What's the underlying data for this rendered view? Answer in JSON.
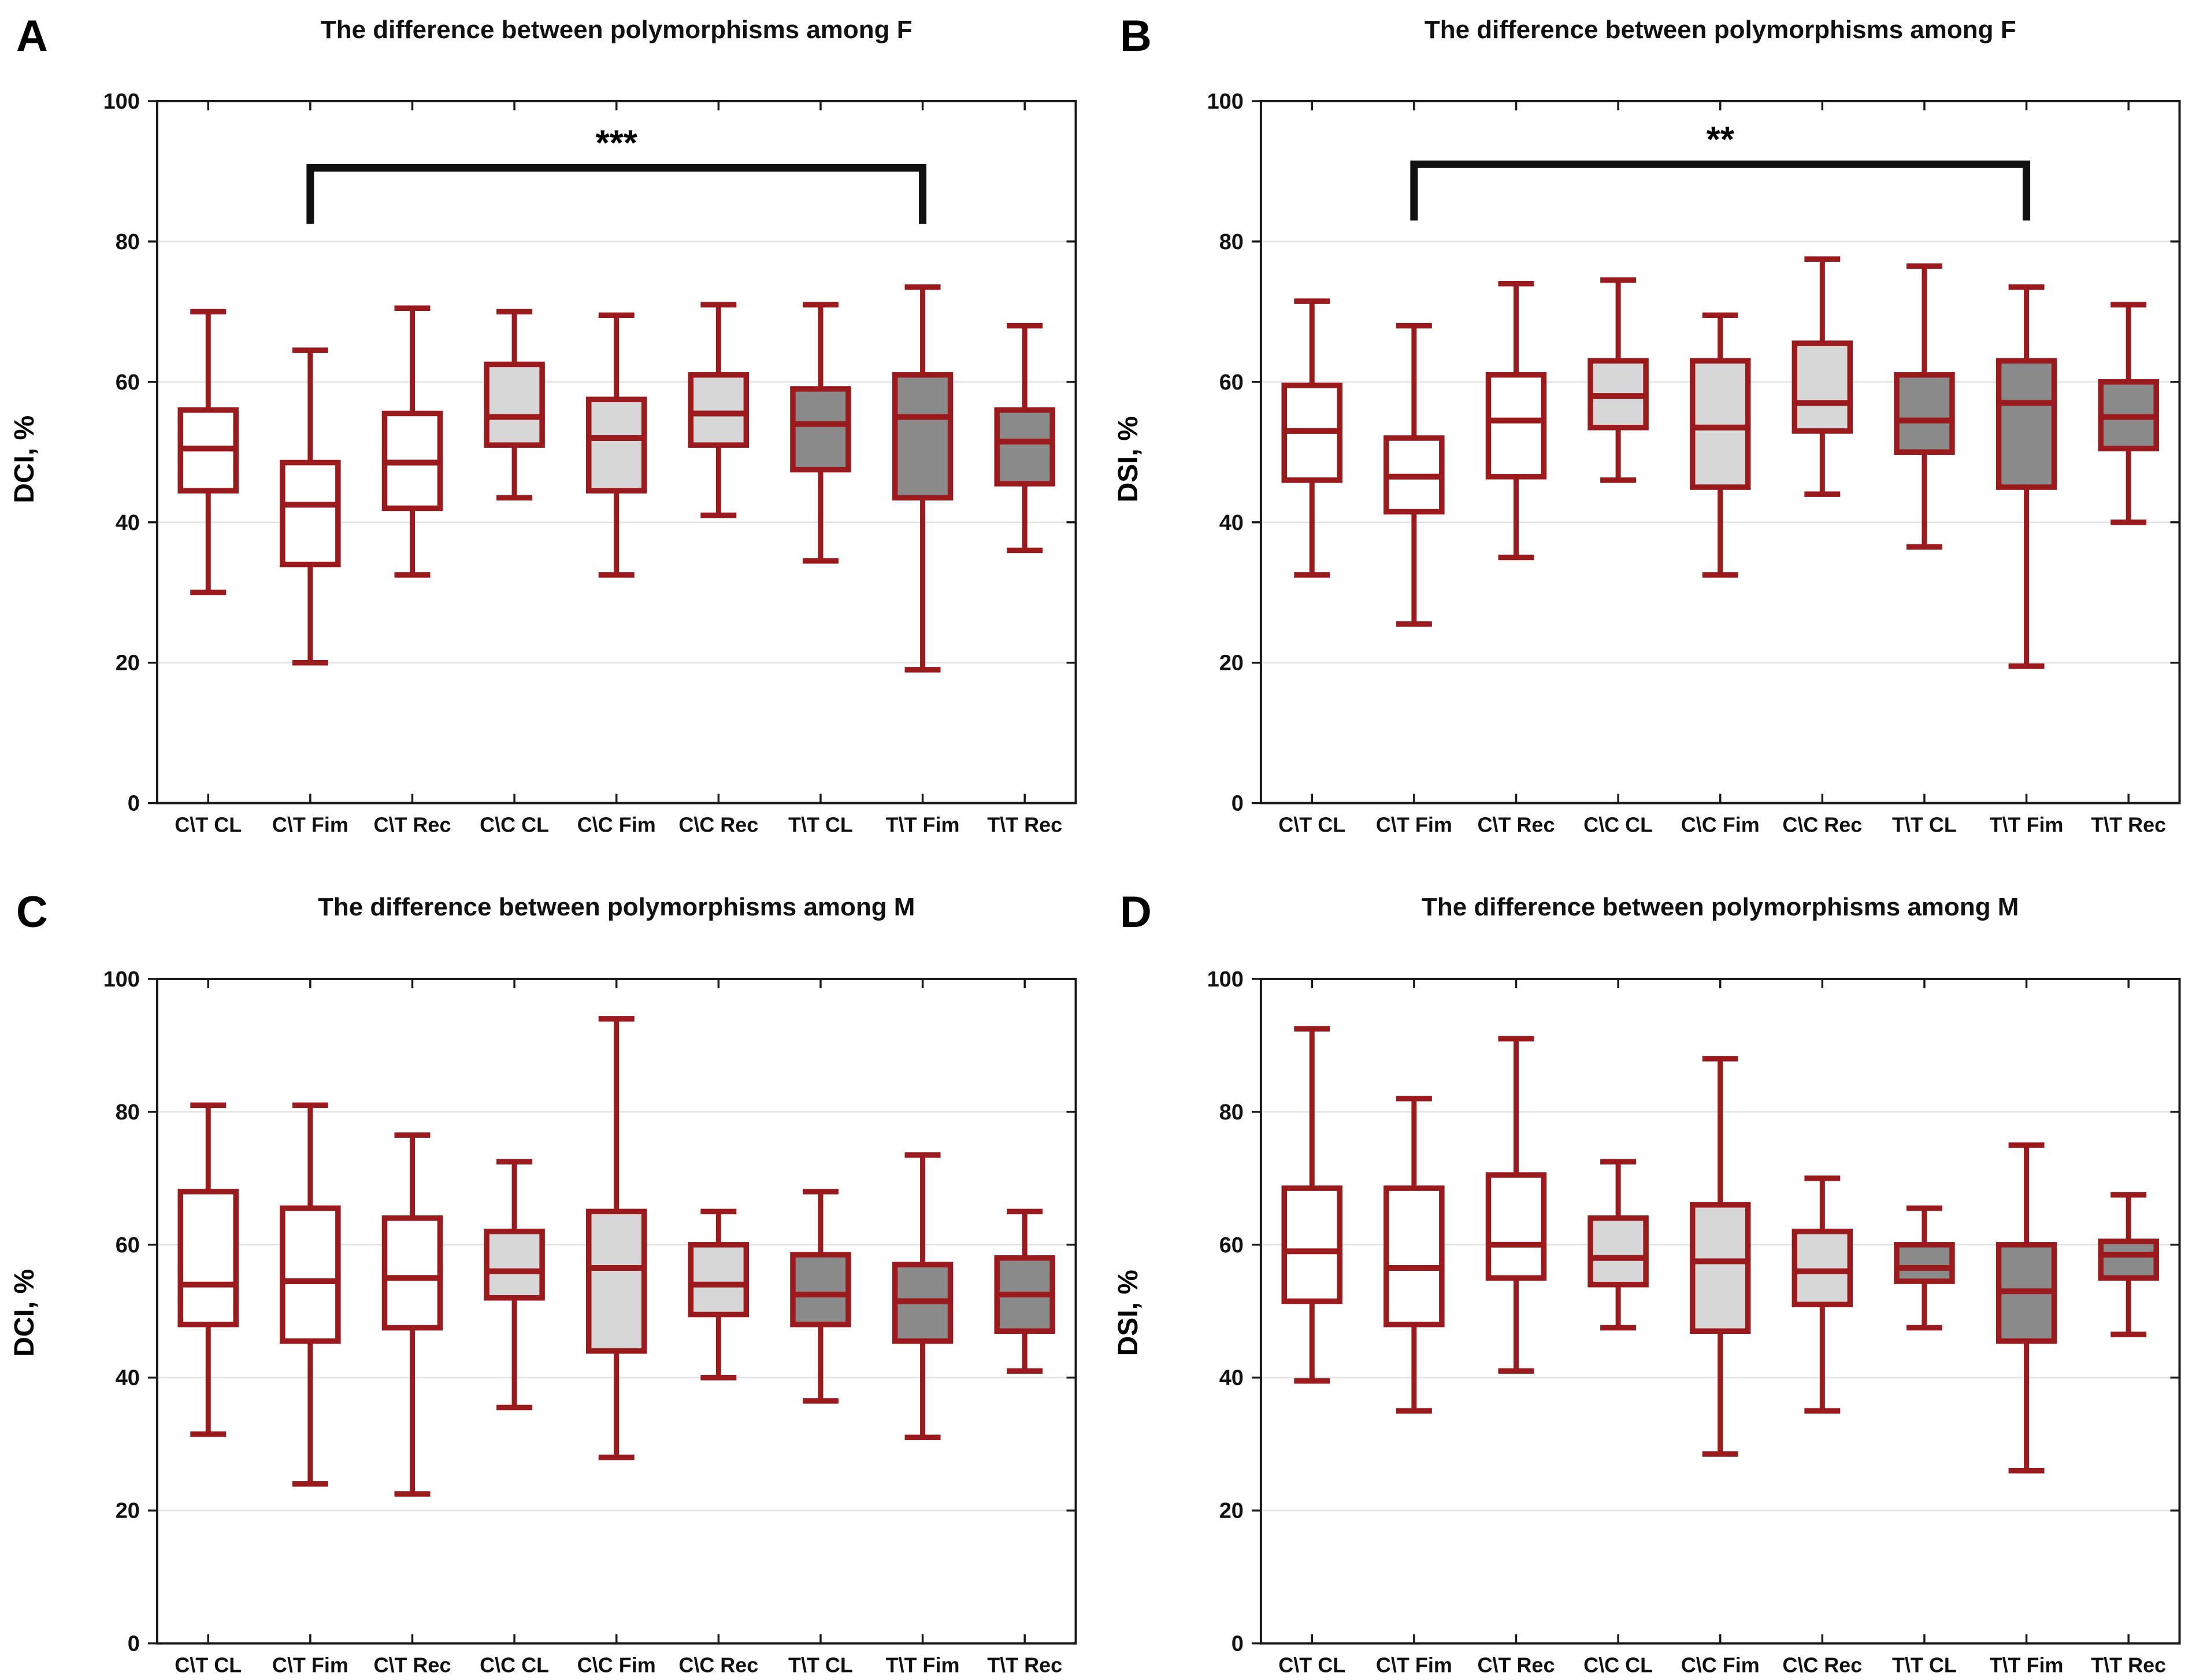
{
  "figure": {
    "layout": "2x2",
    "background": "#ffffff"
  },
  "colors": {
    "box_line": "#9a1a1d",
    "fill_white": "#ffffff",
    "fill_light": "#d7d7d7",
    "fill_dark": "#8a8a8a",
    "gridline": "#e3e3e3",
    "axis": "#1a1a1a",
    "significance_bar": "#111111",
    "text": "#000000"
  },
  "chart_data": [
    {
      "type": "box",
      "panel_letter": "A",
      "title": "The difference between polymorphisms among F",
      "ylabel": "DCI, %",
      "xlabel": "",
      "ylim": [
        0,
        100
      ],
      "yticks": [
        0,
        20,
        40,
        60,
        80,
        100
      ],
      "grid": "horizontal",
      "legend": "none",
      "categories": [
        "C\\T CL",
        "C\\T Fim",
        "C\\T Rec",
        "C\\C CL",
        "C\\C Fim",
        "C\\C Rec",
        "T\\T CL",
        "T\\T Fim",
        "T\\T Rec"
      ],
      "fills": [
        "white",
        "white",
        "white",
        "light",
        "light",
        "light",
        "dark",
        "dark",
        "dark"
      ],
      "boxes": [
        {
          "category": "C\\T CL",
          "min": 30,
          "q1": 44.5,
          "median": 50.5,
          "q3": 56,
          "max": 70
        },
        {
          "category": "C\\T Fim",
          "min": 20,
          "q1": 34,
          "median": 42.5,
          "q3": 48.5,
          "max": 64.5
        },
        {
          "category": "C\\T Rec",
          "min": 32.5,
          "q1": 42,
          "median": 48.5,
          "q3": 55.5,
          "max": 70.5
        },
        {
          "category": "C\\C CL",
          "min": 43.5,
          "q1": 51,
          "median": 55,
          "q3": 62.5,
          "max": 70
        },
        {
          "category": "C\\C Fim",
          "min": 32.5,
          "q1": 44.5,
          "median": 52,
          "q3": 57.5,
          "max": 69.5
        },
        {
          "category": "C\\C Rec",
          "min": 41,
          "q1": 51,
          "median": 55.5,
          "q3": 61,
          "max": 71
        },
        {
          "category": "T\\T CL",
          "min": 34.5,
          "q1": 47.5,
          "median": 54,
          "q3": 59,
          "max": 71
        },
        {
          "category": "T\\T Fim",
          "min": 19,
          "q1": 43.5,
          "median": 55,
          "q3": 61,
          "max": 73.5
        },
        {
          "category": "T\\T Rec",
          "min": 36,
          "q1": 45.5,
          "median": 51.5,
          "q3": 56,
          "max": 68
        }
      ],
      "significance": {
        "label": "***",
        "from": "C\\T Fim",
        "to": "T\\T Fim",
        "bar_y": 90.5,
        "tip_y": 82.5
      }
    },
    {
      "type": "box",
      "panel_letter": "B",
      "title": "The difference between polymorphisms among F",
      "ylabel": "DSI, %",
      "xlabel": "",
      "ylim": [
        0,
        100
      ],
      "yticks": [
        0,
        20,
        40,
        60,
        80,
        100
      ],
      "grid": "horizontal",
      "legend": "none",
      "categories": [
        "C\\T CL",
        "C\\T Fim",
        "C\\T Rec",
        "C\\C CL",
        "C\\C Fim",
        "C\\C Rec",
        "T\\T CL",
        "T\\T Fim",
        "T\\T Rec"
      ],
      "fills": [
        "white",
        "white",
        "white",
        "light",
        "light",
        "light",
        "dark",
        "dark",
        "dark"
      ],
      "boxes": [
        {
          "category": "C\\T CL",
          "min": 32.5,
          "q1": 46,
          "median": 53,
          "q3": 59.5,
          "max": 71.5
        },
        {
          "category": "C\\T Fim",
          "min": 25.5,
          "q1": 41.5,
          "median": 46.5,
          "q3": 52,
          "max": 68
        },
        {
          "category": "C\\T Rec",
          "min": 35,
          "q1": 46.5,
          "median": 54.5,
          "q3": 61,
          "max": 74
        },
        {
          "category": "C\\C CL",
          "min": 46,
          "q1": 53.5,
          "median": 58,
          "q3": 63,
          "max": 74.5
        },
        {
          "category": "C\\C Fim",
          "min": 32.5,
          "q1": 45,
          "median": 53.5,
          "q3": 63,
          "max": 69.5
        },
        {
          "category": "C\\C Rec",
          "min": 44,
          "q1": 53,
          "median": 57,
          "q3": 65.5,
          "max": 77.5
        },
        {
          "category": "T\\T CL",
          "min": 36.5,
          "q1": 50,
          "median": 54.5,
          "q3": 61,
          "max": 76.5
        },
        {
          "category": "T\\T Fim",
          "min": 19.5,
          "q1": 45,
          "median": 57,
          "q3": 63,
          "max": 73.5
        },
        {
          "category": "T\\T Rec",
          "min": 40,
          "q1": 50.5,
          "median": 55,
          "q3": 60,
          "max": 71
        }
      ],
      "significance": {
        "label": "**",
        "from": "C\\T Fim",
        "to": "T\\T Fim",
        "bar_y": 91,
        "tip_y": 83
      }
    },
    {
      "type": "box",
      "panel_letter": "C",
      "title": "The difference between polymorphisms among M",
      "ylabel": "DCI, %",
      "xlabel": "",
      "ylim": [
        0,
        100
      ],
      "yticks": [
        0,
        20,
        40,
        60,
        80,
        100
      ],
      "grid": "horizontal",
      "legend": "none",
      "categories": [
        "C\\T CL",
        "C\\T Fim",
        "C\\T Rec",
        "C\\C CL",
        "C\\C Fim",
        "C\\C Rec",
        "T\\T CL",
        "T\\T Fim",
        "T\\T Rec"
      ],
      "fills": [
        "white",
        "white",
        "white",
        "light",
        "light",
        "light",
        "dark",
        "dark",
        "dark"
      ],
      "boxes": [
        {
          "category": "C\\T CL",
          "min": 31.5,
          "q1": 48,
          "median": 54,
          "q3": 68,
          "max": 81
        },
        {
          "category": "C\\T Fim",
          "min": 24,
          "q1": 45.5,
          "median": 54.5,
          "q3": 65.5,
          "max": 81
        },
        {
          "category": "C\\T Rec",
          "min": 22.5,
          "q1": 47.5,
          "median": 55,
          "q3": 64,
          "max": 76.5
        },
        {
          "category": "C\\C CL",
          "min": 35.5,
          "q1": 52,
          "median": 56,
          "q3": 62,
          "max": 72.5
        },
        {
          "category": "C\\C Fim",
          "min": 28,
          "q1": 44,
          "median": 56.5,
          "q3": 65,
          "max": 94
        },
        {
          "category": "C\\C Rec",
          "min": 40,
          "q1": 49.5,
          "median": 54,
          "q3": 60,
          "max": 65
        },
        {
          "category": "T\\T CL",
          "min": 36.5,
          "q1": 48,
          "median": 52.5,
          "q3": 58.5,
          "max": 68
        },
        {
          "category": "T\\T Fim",
          "min": 31,
          "q1": 45.5,
          "median": 51.5,
          "q3": 57,
          "max": 73.5
        },
        {
          "category": "T\\T Rec",
          "min": 41,
          "q1": 47,
          "median": 52.5,
          "q3": 58,
          "max": 65
        }
      ],
      "significance": null
    },
    {
      "type": "box",
      "panel_letter": "D",
      "title": "The difference between polymorphisms among M",
      "ylabel": "DSI, %",
      "xlabel": "",
      "ylim": [
        0,
        100
      ],
      "yticks": [
        0,
        20,
        40,
        60,
        80,
        100
      ],
      "grid": "horizontal",
      "legend": "none",
      "categories": [
        "C\\T CL",
        "C\\T Fim",
        "C\\T Rec",
        "C\\C CL",
        "C\\C Fim",
        "C\\C Rec",
        "T\\T CL",
        "T\\T Fim",
        "T\\T Rec"
      ],
      "fills": [
        "white",
        "white",
        "white",
        "light",
        "light",
        "light",
        "dark",
        "dark",
        "dark"
      ],
      "boxes": [
        {
          "category": "C\\T CL",
          "min": 39.5,
          "q1": 51.5,
          "median": 59,
          "q3": 68.5,
          "max": 92.5
        },
        {
          "category": "C\\T Fim",
          "min": 35,
          "q1": 48,
          "median": 56.5,
          "q3": 68.5,
          "max": 82
        },
        {
          "category": "C\\T Rec",
          "min": 41,
          "q1": 55,
          "median": 60,
          "q3": 70.5,
          "max": 91
        },
        {
          "category": "C\\C CL",
          "min": 47.5,
          "q1": 54,
          "median": 58,
          "q3": 64,
          "max": 72.5
        },
        {
          "category": "C\\C Fim",
          "min": 28.5,
          "q1": 47,
          "median": 57.5,
          "q3": 66,
          "max": 88
        },
        {
          "category": "C\\C Rec",
          "min": 35,
          "q1": 51,
          "median": 56,
          "q3": 62,
          "max": 70
        },
        {
          "category": "T\\T CL",
          "min": 47.5,
          "q1": 54.5,
          "median": 56.5,
          "q3": 60,
          "max": 65.5
        },
        {
          "category": "T\\T Fim",
          "min": 26,
          "q1": 45.5,
          "median": 53,
          "q3": 60,
          "max": 75
        },
        {
          "category": "T\\T Rec",
          "min": 46.5,
          "q1": 55,
          "median": 58.5,
          "q3": 60.5,
          "max": 67.5
        }
      ],
      "significance": null
    }
  ]
}
